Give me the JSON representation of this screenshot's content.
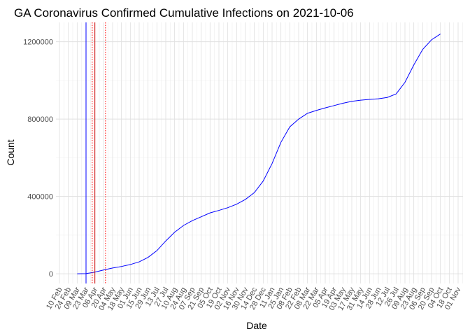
{
  "chart_data": {
    "type": "line",
    "title": "GA Coronavirus Confirmed Cumulative Infections on 2021-10-06",
    "x_label": "Date",
    "y_label": "Count",
    "categories": [
      "10 Feb",
      "24 Feb",
      "09 Mar",
      "23 Mar",
      "06 Apr",
      "20 Apr",
      "04 May",
      "18 May",
      "01 Jun",
      "15 Jun",
      "29 Jun",
      "13 Jul",
      "27 Jul",
      "10 Aug",
      "24 Aug",
      "07 Sep",
      "21 Sep",
      "05 Oct",
      "19 Oct",
      "02 Nov",
      "16 Nov",
      "30 Nov",
      "14 Dec",
      "28 Dec",
      "11 Jan",
      "25 Jan",
      "08 Feb",
      "22 Feb",
      "08 Mar",
      "22 Mar",
      "05 Apr",
      "19 Apr",
      "03 May",
      "17 May",
      "31 May",
      "14 Jun",
      "28 Jun",
      "12 Jul",
      "26 Jul",
      "09 Aug",
      "23 Aug",
      "06 Sep",
      "20 Sep",
      "04 Oct",
      "18 Oct",
      "01 Nov"
    ],
    "series": [
      {
        "color": "#0000ff",
        "values": [
          null,
          null,
          100,
          1000,
          9000,
          20000,
          30000,
          38000,
          48000,
          62000,
          85000,
          120000,
          170000,
          215000,
          250000,
          275000,
          295000,
          315000,
          328000,
          342000,
          360000,
          385000,
          420000,
          480000,
          570000,
          680000,
          760000,
          800000,
          830000,
          845000,
          858000,
          870000,
          882000,
          892000,
          898000,
          902000,
          905000,
          912000,
          930000,
          990000,
          1080000,
          1160000,
          1210000,
          1240000,
          null,
          null
        ]
      }
    ],
    "vlines": [
      {
        "x": 3,
        "color": "#0000ff",
        "style": "solid"
      },
      {
        "x": 4,
        "color": "#cc0000",
        "style": "solid"
      },
      {
        "x": 3.7,
        "color": "#ff0000",
        "style": "dotted"
      },
      {
        "x": 5.2,
        "color": "#ff0000",
        "style": "dotted"
      }
    ],
    "ylim": [
      -50000,
      1300000
    ],
    "yticks": [
      0,
      400000,
      800000,
      1200000
    ],
    "grid": true
  }
}
